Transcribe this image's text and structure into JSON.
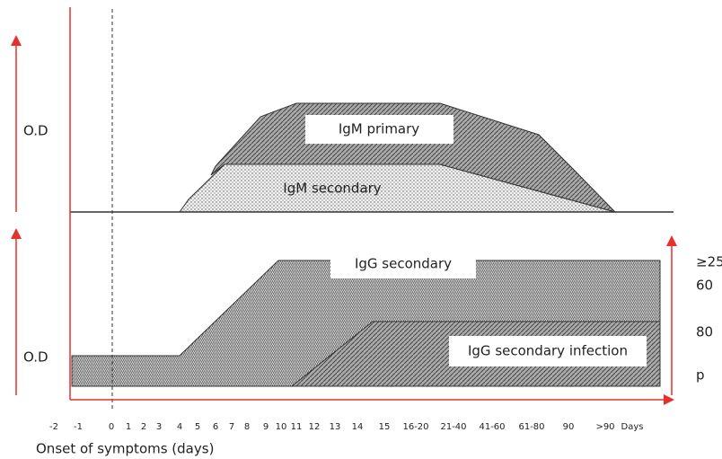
{
  "panels": [
    {
      "axis_label": "O.D",
      "regions": [
        {
          "label": "IgM primary"
        },
        {
          "label": "IgM secondary"
        }
      ]
    },
    {
      "axis_label": "O.D",
      "regions": [
        {
          "label": "IgG secondary"
        },
        {
          "label": "IgG secondary infection"
        }
      ]
    }
  ],
  "right_labels": [
    "≥25",
    "60",
    "80",
    "p"
  ],
  "x_ticks": [
    "-2",
    "-1",
    "0",
    "1",
    "2",
    "3",
    "4",
    "5",
    "6",
    "7",
    "8",
    "9",
    "10",
    "11",
    "12",
    "13",
    "14",
    "15",
    "16-20",
    "21-40",
    "41-60",
    "61-80",
    "90",
    ">90",
    "Days"
  ],
  "x_axis_label": "Onset of symptoms (days)"
}
